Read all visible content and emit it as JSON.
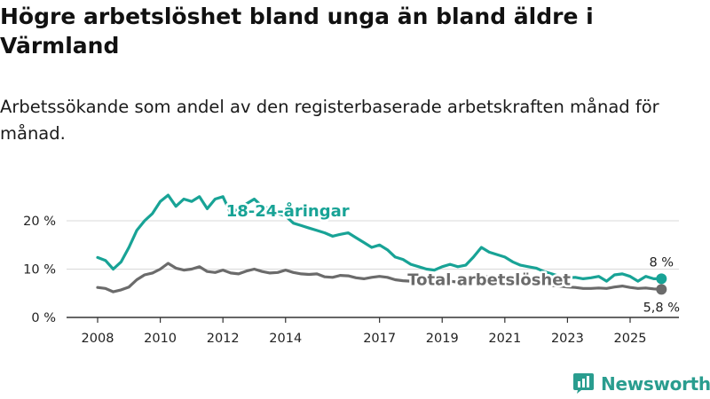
{
  "title": "Högre arbetslöshet bland unga än bland äldre i Värmland",
  "subtitle": "Arbetssökande som andel av den registerbaserade arbetskraften månad för månad.",
  "brand": {
    "name": "Newsworthy",
    "color": "#2a9d8f"
  },
  "colors": {
    "youth": "#18a396",
    "total": "#6b6b6b",
    "grid": "#d9d9d9",
    "axis": "#333333"
  },
  "chart_data": {
    "type": "line",
    "title": "Högre arbetslöshet bland unga än bland äldre i Värmland",
    "xlabel": "",
    "ylabel": "",
    "xlim": [
      2008,
      2026.5
    ],
    "ylim": [
      0,
      25
    ],
    "y_ticks": [
      0,
      10,
      20
    ],
    "y_tick_labels": [
      "0 %",
      "10 %",
      "20 %"
    ],
    "x_ticks": [
      2008,
      2010,
      2012,
      2014,
      2017,
      2019,
      2021,
      2023,
      2025
    ],
    "x_tick_labels": [
      "2008",
      "2010",
      "2012",
      "2014",
      "2017",
      "2019",
      "2021",
      "2023",
      "2025"
    ],
    "series": [
      {
        "name": "18-24-åringar",
        "label": "18-24-åringar",
        "end_label": "8 %",
        "end_value": 8,
        "x": [
          2008.0,
          2008.25,
          2008.5,
          2008.75,
          2009.0,
          2009.25,
          2009.5,
          2009.75,
          2010.0,
          2010.25,
          2010.5,
          2010.75,
          2011.0,
          2011.25,
          2011.5,
          2011.75,
          2012.0,
          2012.25,
          2012.5,
          2012.75,
          2013.0,
          2013.25,
          2013.5,
          2013.75,
          2014.0,
          2014.25,
          2014.5,
          2014.75,
          2015.0,
          2015.25,
          2015.5,
          2015.75,
          2016.0,
          2016.25,
          2016.5,
          2016.75,
          2017.0,
          2017.25,
          2017.5,
          2017.75,
          2018.0,
          2018.25,
          2018.5,
          2018.75,
          2019.0,
          2019.25,
          2019.5,
          2019.75,
          2020.0,
          2020.25,
          2020.5,
          2020.75,
          2021.0,
          2021.25,
          2021.5,
          2021.75,
          2022.0,
          2022.25,
          2022.5,
          2022.75,
          2023.0,
          2023.25,
          2023.5,
          2023.75,
          2024.0,
          2024.25,
          2024.5,
          2024.75,
          2025.0,
          2025.25,
          2025.5,
          2025.75,
          2026.0
        ],
        "values": [
          12.4,
          11.8,
          10.0,
          11.5,
          14.5,
          18.0,
          20.0,
          21.5,
          24.0,
          25.3,
          23.0,
          24.5,
          24.0,
          25.0,
          22.5,
          24.5,
          25.0,
          21.5,
          22.5,
          23.5,
          24.5,
          23.0,
          22.5,
          21.5,
          21.0,
          19.5,
          19.0,
          18.5,
          18.0,
          17.5,
          16.8,
          17.2,
          17.5,
          16.5,
          15.5,
          14.5,
          15.0,
          14.0,
          12.5,
          12.0,
          11.0,
          10.5,
          10.0,
          9.8,
          10.5,
          11.0,
          10.5,
          10.8,
          12.5,
          14.5,
          13.5,
          13.0,
          12.5,
          11.5,
          10.8,
          10.5,
          10.2,
          9.5,
          9.0,
          8.5,
          8.2,
          8.3,
          8.0,
          8.2,
          8.5,
          7.5,
          8.8,
          9.0,
          8.5,
          7.5,
          8.5,
          8.0,
          8.0
        ]
      },
      {
        "name": "Total arbetslöshet",
        "label": "Total arbetslöshet",
        "end_label": "5,8 %",
        "end_value": 5.8,
        "x": [
          2008.0,
          2008.25,
          2008.5,
          2008.75,
          2009.0,
          2009.25,
          2009.5,
          2009.75,
          2010.0,
          2010.25,
          2010.5,
          2010.75,
          2011.0,
          2011.25,
          2011.5,
          2011.75,
          2012.0,
          2012.25,
          2012.5,
          2012.75,
          2013.0,
          2013.25,
          2013.5,
          2013.75,
          2014.0,
          2014.25,
          2014.5,
          2014.75,
          2015.0,
          2015.25,
          2015.5,
          2015.75,
          2016.0,
          2016.25,
          2016.5,
          2016.75,
          2017.0,
          2017.25,
          2017.5,
          2017.75,
          2018.0,
          2018.25,
          2018.5,
          2018.75,
          2019.0,
          2019.25,
          2019.5,
          2019.75,
          2020.0,
          2020.25,
          2020.5,
          2020.75,
          2021.0,
          2021.25,
          2021.5,
          2021.75,
          2022.0,
          2022.25,
          2022.5,
          2022.75,
          2023.0,
          2023.25,
          2023.5,
          2023.75,
          2024.0,
          2024.25,
          2024.5,
          2024.75,
          2025.0,
          2025.25,
          2025.5,
          2025.75,
          2026.0
        ],
        "values": [
          6.2,
          6.0,
          5.3,
          5.7,
          6.3,
          7.8,
          8.8,
          9.2,
          10.0,
          11.2,
          10.2,
          9.8,
          10.0,
          10.5,
          9.5,
          9.3,
          9.8,
          9.2,
          9.0,
          9.6,
          10.0,
          9.5,
          9.2,
          9.3,
          9.8,
          9.3,
          9.0,
          8.9,
          9.0,
          8.4,
          8.3,
          8.7,
          8.6,
          8.2,
          8.0,
          8.3,
          8.5,
          8.3,
          7.8,
          7.6,
          7.5,
          7.4,
          7.3,
          7.2,
          7.4,
          7.5,
          7.3,
          7.4,
          8.0,
          8.6,
          8.3,
          8.2,
          8.0,
          7.6,
          7.3,
          7.1,
          6.9,
          6.7,
          6.6,
          6.5,
          6.3,
          6.2,
          6.0,
          6.0,
          6.1,
          6.0,
          6.3,
          6.5,
          6.2,
          6.0,
          6.1,
          5.9,
          5.8
        ]
      }
    ]
  }
}
